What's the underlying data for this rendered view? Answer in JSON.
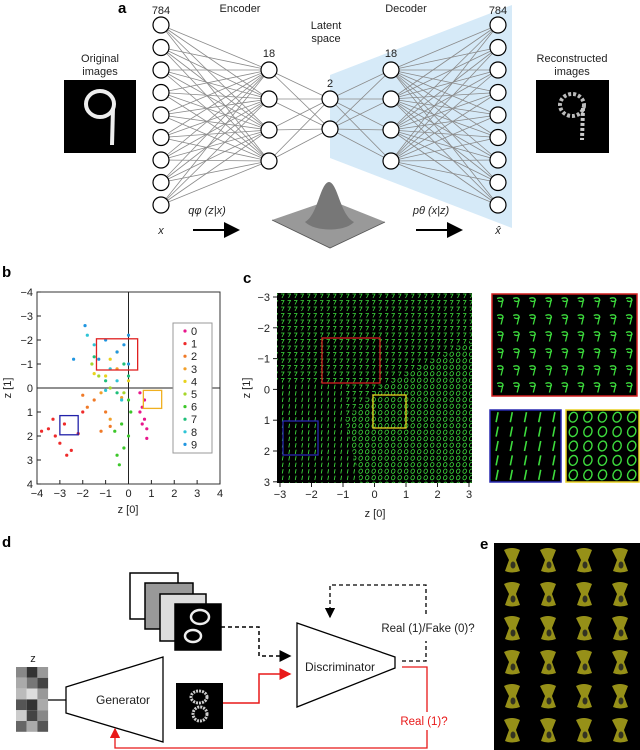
{
  "panel_labels": {
    "a": "a",
    "b": "b",
    "c": "c",
    "d": "d",
    "e": "e"
  },
  "panel_a": {
    "encoder": "Encoder",
    "decoder": "Decoder",
    "latent_line1": "Latent",
    "latent_line2": "space",
    "input_size": "784",
    "hidden_enc_size": "18",
    "latent_size": "2",
    "hidden_dec_size": "18",
    "output_size": "784",
    "original_line1": "Original",
    "original_line2": "images",
    "reconstructed_line1": "Reconstructed",
    "reconstructed_line2": "images",
    "x_label": "x",
    "xhat_label": "x̂",
    "q_label": "qφ (z|x)",
    "p_label": "pθ (x|z)",
    "decoder_shade_color": "#d6eaf8"
  },
  "chart_data": {
    "type": "scatter",
    "xlabel": "z [0]",
    "ylabel": "z [1]",
    "xlim": [
      -4,
      4
    ],
    "ylim": [
      -4,
      4
    ],
    "y_inverted": true,
    "xticks": [
      "−4",
      "−3",
      "−2",
      "−1",
      "0",
      "1",
      "2",
      "3",
      "4"
    ],
    "yticks": [
      "−4",
      "−3",
      "−2",
      "−1",
      "0",
      "1",
      "2",
      "3",
      "4"
    ],
    "grid": false,
    "crosshair_at_origin": true,
    "legend_placement": "right",
    "series": [
      {
        "name": "0",
        "color": "#e8168c",
        "points": [
          [
            0.5,
            0.2
          ],
          [
            0.6,
            0.8
          ],
          [
            0.7,
            1.3
          ],
          [
            0.8,
            1.7
          ],
          [
            0.5,
            1.0
          ],
          [
            0.7,
            0.5
          ],
          [
            0.8,
            2.1
          ],
          [
            0.6,
            1.5
          ]
        ]
      },
      {
        "name": "1",
        "color": "#ee2b2b",
        "points": [
          [
            -3.5,
            1.7
          ],
          [
            -3.2,
            2.0
          ],
          [
            -2.8,
            1.5
          ],
          [
            -3.0,
            2.3
          ],
          [
            -2.5,
            2.6
          ],
          [
            -3.8,
            1.8
          ],
          [
            -2.2,
            1.9
          ],
          [
            -2.7,
            2.8
          ],
          [
            -3.3,
            1.3
          ],
          [
            -2.0,
            1.0
          ]
        ]
      },
      {
        "name": "2",
        "color": "#f07a28",
        "points": [
          [
            -1.5,
            0.5
          ],
          [
            -1.0,
            1.0
          ],
          [
            -1.8,
            0.8
          ],
          [
            -0.8,
            1.6
          ],
          [
            -2.0,
            0.3
          ],
          [
            -1.2,
            1.8
          ]
        ]
      },
      {
        "name": "3",
        "color": "#f2a02a",
        "points": [
          [
            -0.5,
            -0.8
          ],
          [
            -1.2,
            0.2
          ],
          [
            -0.3,
            0.4
          ],
          [
            -0.8,
            1.3
          ]
        ]
      },
      {
        "name": "4",
        "color": "#e8d21e",
        "points": [
          [
            -0.8,
            -1.2
          ],
          [
            -1.0,
            -0.5
          ],
          [
            -0.5,
            -1.5
          ],
          [
            0.0,
            -0.3
          ],
          [
            -1.5,
            -0.6
          ]
        ]
      },
      {
        "name": "5",
        "color": "#a6d62a",
        "points": [
          [
            -1.3,
            -0.5
          ],
          [
            -0.8,
            0.0
          ],
          [
            -0.2,
            0.2
          ],
          [
            -1.6,
            -1.0
          ]
        ]
      },
      {
        "name": "6",
        "color": "#3cc72a",
        "points": [
          [
            -0.3,
            1.5
          ],
          [
            0.0,
            2.0
          ],
          [
            -0.2,
            2.5
          ],
          [
            -0.5,
            2.8
          ],
          [
            0.1,
            1.0
          ],
          [
            -0.6,
            1.8
          ],
          [
            -0.4,
            3.2
          ],
          [
            0.0,
            0.5
          ]
        ]
      },
      {
        "name": "7",
        "color": "#1fbf7a",
        "points": [
          [
            -1.0,
            -0.3
          ],
          [
            -0.5,
            0.2
          ],
          [
            0.0,
            -0.5
          ],
          [
            -1.5,
            -1.3
          ],
          [
            -0.2,
            -1.0
          ]
        ]
      },
      {
        "name": "8",
        "color": "#2ec4d6",
        "points": [
          [
            -1.0,
            0.1
          ],
          [
            -0.5,
            -0.3
          ],
          [
            -1.5,
            -1.8
          ],
          [
            -0.3,
            0.5
          ],
          [
            -1.8,
            -2.2
          ],
          [
            -0.8,
            -0.8
          ]
        ]
      },
      {
        "name": "9",
        "color": "#2196e0",
        "points": [
          [
            -1.0,
            -2.0
          ],
          [
            -0.5,
            -1.5
          ],
          [
            0.0,
            -2.2
          ],
          [
            -1.3,
            -1.2
          ],
          [
            -0.2,
            -1.8
          ],
          [
            -2.4,
            -1.2
          ],
          [
            -1.9,
            -2.6
          ],
          [
            0.0,
            -1.0
          ]
        ]
      }
    ],
    "highlight_boxes": [
      {
        "color": "#e02020",
        "x": [
          -1.4,
          0.4
        ],
        "y": [
          -2.05,
          -0.75
        ]
      },
      {
        "color": "#2222aa",
        "x": [
          -3.0,
          -2.2
        ],
        "y": [
          1.15,
          1.95
        ]
      },
      {
        "color": "#f0b020",
        "x": [
          0.65,
          1.45
        ],
        "y": [
          0.1,
          0.85
        ]
      }
    ]
  },
  "panel_c": {
    "xlabel": "z [0]",
    "ylabel": "z [1]",
    "xticks": [
      "−3",
      "−2",
      "−1",
      "0",
      "1",
      "2",
      "3"
    ],
    "yticks": [
      "−3",
      "−2",
      "−1",
      "0",
      "1",
      "2",
      "3"
    ],
    "digit_color": "#3ddc3d",
    "box_colors": {
      "red": "#d42020",
      "blue": "#2828b0",
      "yellow": "#e8d020"
    }
  },
  "panel_d": {
    "z_label": "z",
    "generator": "Generator",
    "discriminator": "Discriminator",
    "real_fake": "Real (1)/Fake (0)?",
    "real": "Real (1)?",
    "red_color": "#e81818"
  },
  "panel_e": {
    "digit_color": "#c8c020"
  }
}
